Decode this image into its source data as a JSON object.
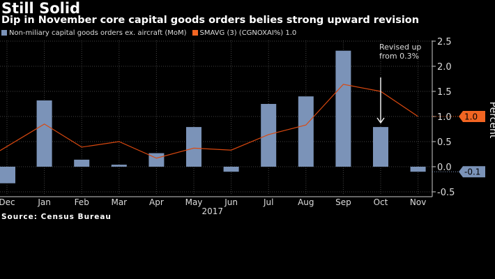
{
  "title": "Still Solid",
  "subtitle": "Dip in November core capital goods orders belies strong upward revision",
  "source": "Source: Census Bureau",
  "chart_data": {
    "type": "bar",
    "categories": [
      "Dec",
      "Jan",
      "Feb",
      "Mar",
      "Apr",
      "May",
      "Jun",
      "Jul",
      "Aug",
      "Sep",
      "Oct",
      "Nov"
    ],
    "year_label": "2017",
    "ylabel": "Percent",
    "ylim": [
      -0.6,
      2.6
    ],
    "yticks": [
      -0.5,
      0.0,
      0.5,
      1.0,
      1.5,
      2.0,
      2.5
    ],
    "ytick_labels": [
      "-0.5",
      "0.0",
      "0.5",
      "1.0",
      "1.5",
      "2.0",
      "2.5"
    ],
    "grid": true,
    "legend_position": "top-left",
    "series": [
      {
        "name": "Non-miliary capital goods orders ex. aircraft (MoM)",
        "type": "bar",
        "color": "#7b93b8",
        "values": [
          -0.33,
          1.32,
          0.14,
          0.04,
          0.27,
          0.79,
          -0.1,
          1.25,
          1.4,
          2.31,
          0.79,
          -0.1
        ],
        "last_value_label": "-0.1"
      },
      {
        "name": "SMAVG (3) (CGNOXAI%) 1.0",
        "type": "line",
        "color": "#d9480f",
        "values": [
          0.32,
          0.85,
          0.39,
          0.5,
          0.17,
          0.37,
          0.33,
          0.64,
          0.83,
          1.64,
          1.5,
          1.0
        ],
        "last_value_label": "1.0"
      }
    ],
    "annotation": {
      "text_line1": "Revised up",
      "text_line2": "from 0.3%",
      "category": "Oct"
    }
  }
}
